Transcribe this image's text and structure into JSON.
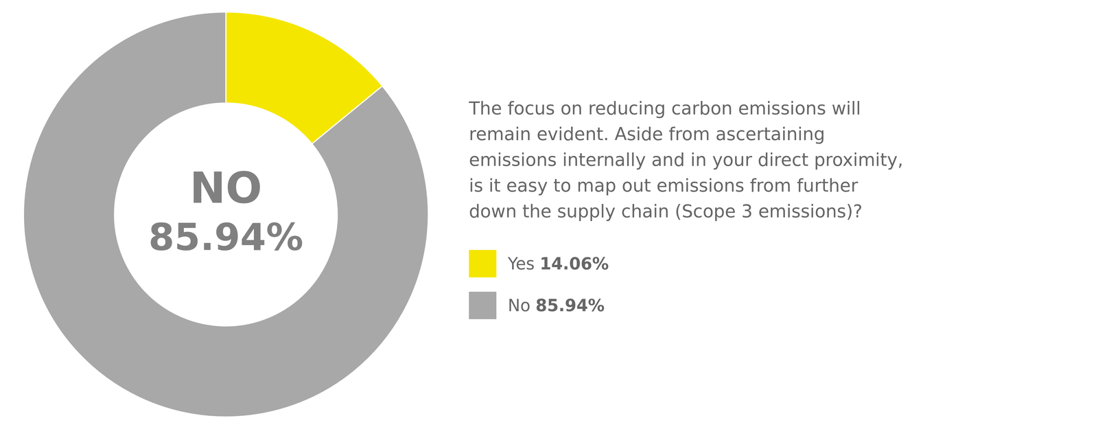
{
  "chart_data": {
    "type": "doughnut",
    "categories": [
      "Yes",
      "No"
    ],
    "values": [
      14.06,
      85.94
    ],
    "value_labels": [
      "14.06%",
      "85.94%"
    ],
    "colors": [
      "#F5E600",
      "#A8A8A8"
    ],
    "annotations": [
      "NO",
      "85.94%"
    ],
    "subtitle": [
      "The focus on reducing carbon emissions will",
      "remain evident. Aside from ascertaining",
      "emissions internally and in your direct proximity,",
      "is it easy to map out emissions from further",
      "down the supply chain (Scope 3 emissions)?"
    ],
    "legend": "right"
  }
}
